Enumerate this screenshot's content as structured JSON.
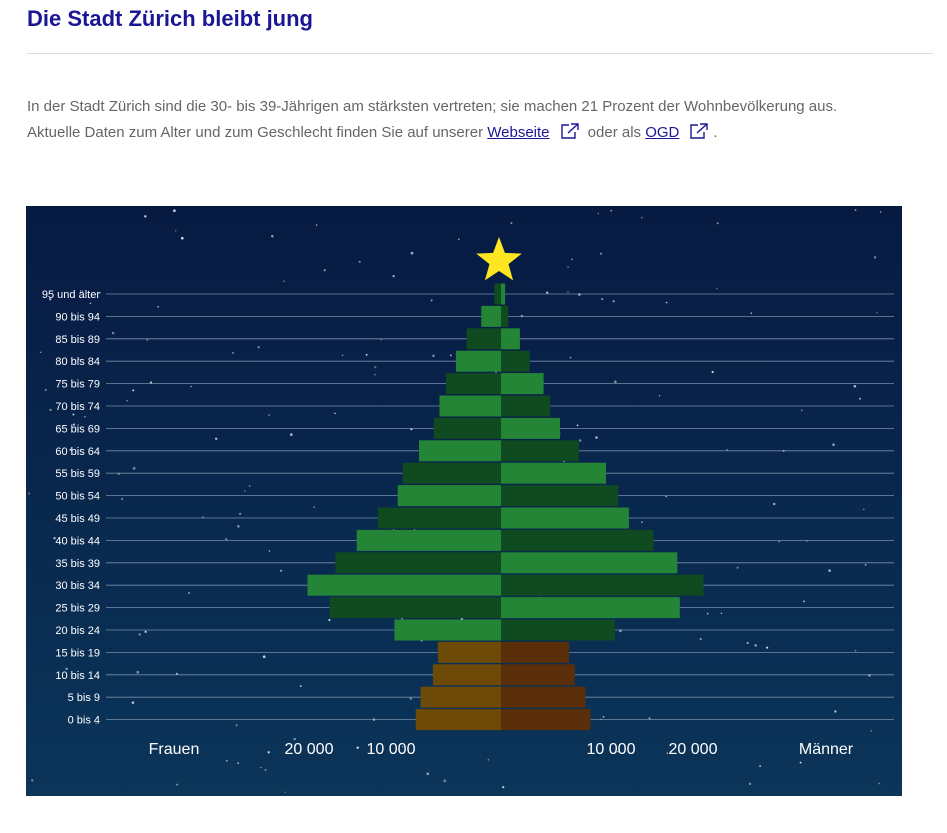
{
  "page": {
    "title": "Die Stadt Zürich bleibt jung",
    "intro_line1": "In der Stadt Zürich sind die 30- bis 39-Jährigen am stärksten vertreten; sie machen 21 Prozent der Wohnbevölkerung aus.",
    "intro_line2_before": "Aktuelle Daten zum Alter und zum Geschlecht finden Sie auf unserer ",
    "link_website": "Webseite",
    "intro_line2_middle": " oder als ",
    "link_ogd": "OGD",
    "intro_line2_end": "."
  },
  "chart_data": {
    "type": "bar",
    "orientation": "horizontal",
    "subtype": "population-pyramid",
    "categories": [
      "95 und älter",
      "90 bis 94",
      "85 bis 89",
      "80 bis 84",
      "75 bis 79",
      "70 bis 74",
      "65 bis 69",
      "60 bis 64",
      "55 bis 59",
      "50 bis 54",
      "45 bis 49",
      "40 bis 44",
      "35 bis 39",
      "30 bis 34",
      "25 bis 29",
      "20 bis 24",
      "15 bis 19",
      "10 bis 14",
      "5 bis 9",
      "0 bis 4"
    ],
    "series": [
      {
        "name": "Frauen",
        "values": [
          800,
          2400,
          4200,
          5500,
          6700,
          7500,
          8200,
          10000,
          12000,
          12600,
          15000,
          17600,
          20200,
          23600,
          20900,
          13000,
          7700,
          8300,
          9800,
          10400
        ]
      },
      {
        "name": "Männer",
        "values": [
          500,
          900,
          2300,
          3500,
          5200,
          6000,
          7200,
          9500,
          12800,
          14300,
          15600,
          18600,
          21500,
          24700,
          21800,
          13900,
          8300,
          9000,
          10300,
          10900
        ]
      }
    ],
    "xlabel_left": "Frauen",
    "xlabel_right": "Männer",
    "tick_labels_left": [
      "20 000",
      "10 000"
    ],
    "tick_labels_right": [
      "10 000",
      "20 000"
    ],
    "tick_values": [
      10000,
      20000
    ],
    "xlim": [
      0,
      30000
    ],
    "grid": true,
    "colors": {
      "background_top": "#071a42",
      "background_bottom": "#0b3559",
      "green_light": "#238535",
      "green_dark": "#0f4a20",
      "brown_left": "#6e4a08",
      "brown_right": "#5a2e08",
      "star": "#ffe623",
      "gridline": "#8a9fb6",
      "text": "#ffffff"
    },
    "decoration": "star-icon"
  }
}
